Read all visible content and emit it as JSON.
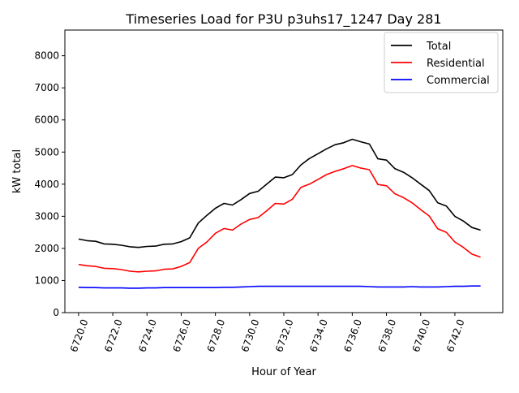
{
  "chart_data": {
    "type": "line",
    "title": "Timeseries Load for P3U p3uhs17_1247  Day 281",
    "xlabel": "Hour of Year",
    "ylabel": "kW total",
    "xlim": [
      6719.2,
      6744.8
    ],
    "ylim": [
      0,
      8800
    ],
    "x_ticks": [
      6720,
      6722,
      6724,
      6726,
      6728,
      6730,
      6732,
      6734,
      6736,
      6738,
      6740,
      6742
    ],
    "x_tick_labels": [
      "6720.0",
      "6722.0",
      "6724.0",
      "6726.0",
      "6728.0",
      "6730.0",
      "6732.0",
      "6734.0",
      "6736.0",
      "6738.0",
      "6740.0",
      "6742.0"
    ],
    "y_ticks": [
      0,
      1000,
      2000,
      3000,
      4000,
      5000,
      6000,
      7000,
      8000
    ],
    "y_tick_labels": [
      "0",
      "1000",
      "2000",
      "3000",
      "4000",
      "5000",
      "6000",
      "7000",
      "8000"
    ],
    "legend_position": "top-right",
    "series": [
      {
        "name": "Total",
        "color": "#000000",
        "x": [
          6720.0,
          6720.5,
          6721.0,
          6721.5,
          6722.0,
          6722.5,
          6723.0,
          6723.5,
          6724.0,
          6724.5,
          6725.0,
          6725.5,
          6726.0,
          6726.5,
          6727.0,
          6727.5,
          6728.0,
          6728.5,
          6729.0,
          6729.5,
          6730.0,
          6730.5,
          6731.0,
          6731.5,
          6732.0,
          6732.5,
          6733.0,
          6733.5,
          6734.0,
          6734.5,
          6735.0,
          6735.5,
          6736.0,
          6736.5,
          6737.0,
          6737.5,
          6738.0,
          6738.5,
          6739.0,
          6739.5,
          6740.0,
          6740.5,
          6741.0,
          6741.5,
          6742.0,
          6742.5,
          6743.0,
          6743.5
        ],
        "values": [
          2290,
          2240,
          2220,
          2140,
          2130,
          2100,
          2050,
          2030,
          2060,
          2070,
          2130,
          2140,
          2210,
          2330,
          2790,
          3030,
          3250,
          3400,
          3350,
          3520,
          3710,
          3780,
          4000,
          4220,
          4200,
          4300,
          4600,
          4800,
          4950,
          5100,
          5230,
          5290,
          5400,
          5320,
          5250,
          4790,
          4750,
          4480,
          4370,
          4200,
          4000,
          3800,
          3420,
          3320,
          3000,
          2850,
          2650,
          2570
        ]
      },
      {
        "name": "Residential",
        "color": "#ff0000",
        "x": [
          6720.0,
          6720.5,
          6721.0,
          6721.5,
          6722.0,
          6722.5,
          6723.0,
          6723.5,
          6724.0,
          6724.5,
          6725.0,
          6725.5,
          6726.0,
          6726.5,
          6727.0,
          6727.5,
          6728.0,
          6728.5,
          6729.0,
          6729.5,
          6730.0,
          6730.5,
          6731.0,
          6731.5,
          6732.0,
          6732.5,
          6733.0,
          6733.5,
          6734.0,
          6734.5,
          6735.0,
          6735.5,
          6736.0,
          6736.5,
          6737.0,
          6737.5,
          6738.0,
          6738.5,
          6739.0,
          6739.5,
          6740.0,
          6740.5,
          6741.0,
          6741.5,
          6742.0,
          6742.5,
          6743.0,
          6743.5
        ],
        "values": [
          1500,
          1460,
          1440,
          1380,
          1370,
          1340,
          1290,
          1270,
          1290,
          1300,
          1350,
          1360,
          1440,
          1560,
          2000,
          2200,
          2470,
          2620,
          2570,
          2760,
          2900,
          2960,
          3170,
          3400,
          3380,
          3530,
          3900,
          4000,
          4150,
          4300,
          4400,
          4480,
          4580,
          4500,
          4450,
          3990,
          3950,
          3700,
          3580,
          3420,
          3210,
          3010,
          2610,
          2500,
          2200,
          2030,
          1820,
          1730
        ]
      },
      {
        "name": "Commercial",
        "color": "#0000ff",
        "x": [
          6720.0,
          6720.5,
          6721.0,
          6721.5,
          6722.0,
          6722.5,
          6723.0,
          6723.5,
          6724.0,
          6724.5,
          6725.0,
          6725.5,
          6726.0,
          6726.5,
          6727.0,
          6727.5,
          6728.0,
          6728.5,
          6729.0,
          6729.5,
          6730.0,
          6730.5,
          6731.0,
          6731.5,
          6732.0,
          6732.5,
          6733.0,
          6733.5,
          6734.0,
          6734.5,
          6735.0,
          6735.5,
          6736.0,
          6736.5,
          6737.0,
          6737.5,
          6738.0,
          6738.5,
          6739.0,
          6739.5,
          6740.0,
          6740.5,
          6741.0,
          6741.5,
          6742.0,
          6742.5,
          6743.0,
          6743.5
        ],
        "values": [
          790,
          780,
          780,
          770,
          770,
          770,
          760,
          760,
          770,
          770,
          780,
          780,
          780,
          780,
          780,
          780,
          780,
          790,
          790,
          800,
          810,
          820,
          820,
          820,
          820,
          820,
          820,
          820,
          820,
          820,
          820,
          820,
          820,
          820,
          810,
          800,
          800,
          800,
          800,
          810,
          800,
          800,
          800,
          810,
          820,
          820,
          830,
          830
        ]
      }
    ]
  }
}
